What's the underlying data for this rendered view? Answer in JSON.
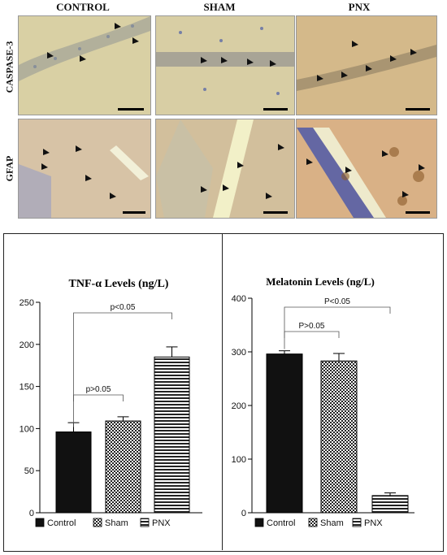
{
  "micrographs": {
    "columns": [
      "CONTROL",
      "SHAM",
      "PNX"
    ],
    "rows": [
      "CASPASE-3",
      "GFAP"
    ]
  },
  "chart_data": [
    {
      "type": "bar",
      "title": "TNF-α Levels  (ng/L)",
      "categories": [
        "Control",
        "Sham",
        "PNX"
      ],
      "values": [
        96,
        109,
        185
      ],
      "errors": [
        11,
        5,
        12
      ],
      "ylim": [
        0,
        250
      ],
      "yticks": [
        0,
        50,
        100,
        150,
        200,
        250
      ],
      "legend": [
        "Control",
        "Sham",
        "PNX"
      ],
      "legend_position": "bottom",
      "annotations": [
        {
          "label": "p>0.05",
          "from": "Control",
          "to": "Sham"
        },
        {
          "label": "p<0.05",
          "from": "Control",
          "to": "PNX"
        }
      ]
    },
    {
      "type": "bar",
      "title": "Melatonin Levels (ng/L)",
      "categories": [
        "Control",
        "Sham",
        "PNX"
      ],
      "values": [
        296,
        283,
        32
      ],
      "errors": [
        6,
        14,
        5
      ],
      "ylim": [
        0,
        400
      ],
      "yticks": [
        0,
        100,
        200,
        300,
        400
      ],
      "legend": [
        "Control",
        "Sham",
        "PNX"
      ],
      "legend_position": "bottom",
      "annotations": [
        {
          "label": "P>0.05",
          "from": "Control",
          "to": "Sham"
        },
        {
          "label": "P<0.05",
          "from": "Control",
          "to": "PNX"
        }
      ]
    }
  ]
}
